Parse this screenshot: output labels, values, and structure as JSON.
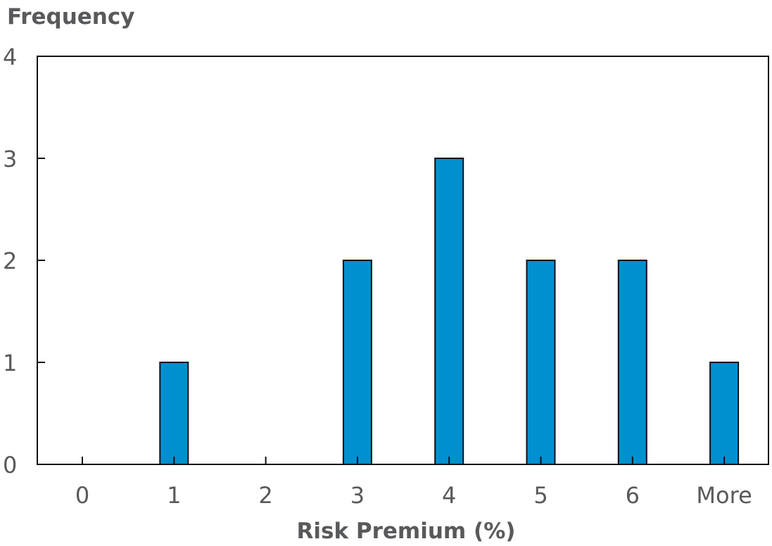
{
  "chart_data": {
    "type": "bar",
    "title": "",
    "ylabel": "Frequency",
    "xlabel": "Risk Premium (%)",
    "categories": [
      "0",
      "1",
      "2",
      "3",
      "4",
      "5",
      "6",
      "More"
    ],
    "values": [
      0,
      1,
      0,
      2,
      3,
      2,
      2,
      1
    ],
    "ylim": [
      0,
      4
    ],
    "yticks": [
      "0",
      "1",
      "2",
      "3",
      "4"
    ],
    "grid": false,
    "legend": "none",
    "colors": {
      "bar_fill": "#0090d0",
      "bar_stroke": "#111111",
      "text": "#58595b",
      "axis": "#111111"
    }
  }
}
